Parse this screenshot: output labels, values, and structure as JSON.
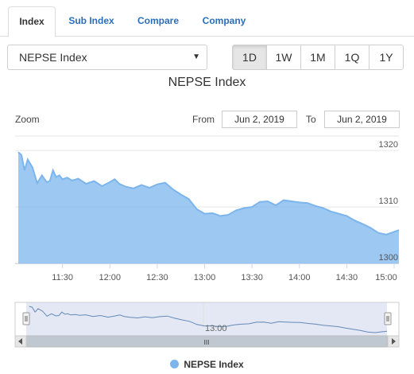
{
  "tabs": [
    {
      "label": "Index",
      "active": true
    },
    {
      "label": "Sub Index",
      "active": false
    },
    {
      "label": "Compare",
      "active": false
    },
    {
      "label": "Company",
      "active": false
    }
  ],
  "index_select": {
    "value": "NEPSE Index",
    "caret": "▼"
  },
  "ranges": [
    {
      "label": "1D",
      "active": true
    },
    {
      "label": "1W",
      "active": false
    },
    {
      "label": "1M",
      "active": false
    },
    {
      "label": "1Q",
      "active": false
    },
    {
      "label": "1Y",
      "active": false
    }
  ],
  "chart": {
    "title": "NEPSE Index",
    "zoom_label": "Zoom",
    "from_label": "From",
    "from_value": "Jun 2, 2019",
    "to_label": "To",
    "to_value": "Jun 2, 2019",
    "legend": "NEPSE Index",
    "navigator_label": "13:00",
    "scrollbar_grip": "III",
    "series_color": "#7cb5ec"
  },
  "chart_data": {
    "type": "area",
    "title": "NEPSE Index",
    "series": [
      {
        "name": "NEPSE Index",
        "x": [
          "11:02",
          "11:04",
          "11:06",
          "11:08",
          "11:11",
          "11:14",
          "11:17",
          "11:20",
          "11:22",
          "11:24",
          "11:26",
          "11:28",
          "11:30",
          "11:33",
          "11:36",
          "11:40",
          "11:45",
          "11:50",
          "11:55",
          "12:00",
          "12:03",
          "12:06",
          "12:10",
          "12:15",
          "12:20",
          "12:25",
          "12:30",
          "12:35",
          "12:40",
          "12:45",
          "12:50",
          "12:55",
          "13:00",
          "13:05",
          "13:10",
          "13:15",
          "13:20",
          "13:25",
          "13:30",
          "13:35",
          "13:40",
          "13:45",
          "13:50",
          "13:55",
          "14:00",
          "14:05",
          "14:10",
          "14:15",
          "14:20",
          "14:25",
          "14:30",
          "14:35",
          "14:40",
          "14:45",
          "14:50",
          "14:55",
          "15:00",
          "15:03"
        ],
        "values": [
          1319.7,
          1319.2,
          1316.5,
          1318.4,
          1317.0,
          1314.2,
          1315.6,
          1314.4,
          1314.6,
          1316.5,
          1315.3,
          1315.6,
          1314.9,
          1315.2,
          1314.7,
          1315.0,
          1314.1,
          1314.6,
          1313.7,
          1314.4,
          1314.9,
          1314.1,
          1313.6,
          1313.3,
          1313.9,
          1313.4,
          1314.0,
          1314.3,
          1313.1,
          1312.2,
          1311.4,
          1309.6,
          1308.8,
          1308.9,
          1308.4,
          1308.6,
          1309.4,
          1309.8,
          1310.0,
          1310.9,
          1311.0,
          1310.3,
          1311.2,
          1311.0,
          1310.8,
          1310.7,
          1310.2,
          1309.8,
          1309.2,
          1308.8,
          1308.4,
          1307.6,
          1307.0,
          1306.3,
          1305.4,
          1305.1,
          1305.6,
          1305.9
        ]
      }
    ],
    "x_ticks": [
      "11:30",
      "12:00",
      "12:30",
      "13:00",
      "13:30",
      "14:00",
      "14:30",
      "15:00"
    ],
    "y_ticks": [
      1300,
      1310,
      1320
    ],
    "xlim": [
      "11:00",
      "15:03"
    ],
    "ylim": [
      1300,
      1322
    ],
    "grid": true,
    "legend_position": "bottom-center"
  }
}
